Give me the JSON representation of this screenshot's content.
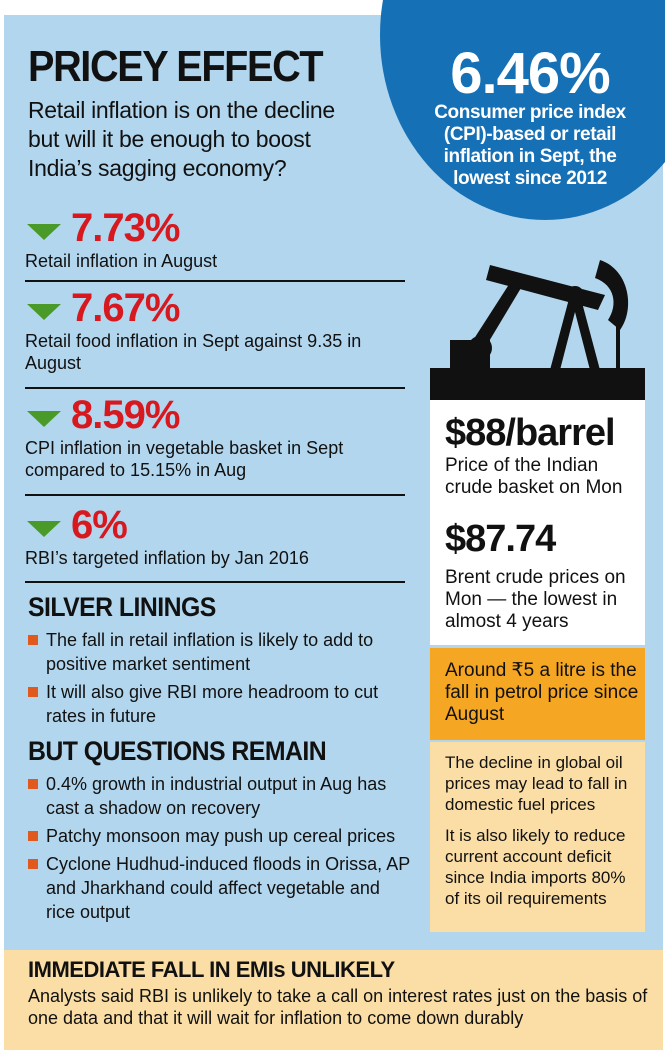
{
  "header": {
    "title": "PRICEY EFFECT",
    "subtitle": "Retail inflation is on the decline but will it be enough to boost India’s sagging economy?"
  },
  "highlight": {
    "value": "6.46%",
    "description": "Consumer price index (CPI)-based or retail inflation in Sept, the lowest since 2012"
  },
  "stats": [
    {
      "value": "7.73%",
      "description": "Retail inflation in August"
    },
    {
      "value": "7.67%",
      "description": "Retail food inflation in Sept against 9.35 in August"
    },
    {
      "value": "8.59%",
      "description": "CPI inflation in vegetable basket in Sept compared to 15.15% in Aug"
    },
    {
      "value": "6%",
      "description": "RBI’s targeted inflation by Jan 2016"
    }
  ],
  "silver_linings": {
    "heading": "SILVER LININGS",
    "items": [
      "The fall in retail inflation is likely to add to positive market sentiment",
      "It will also give RBI  more headroom to cut rates in future"
    ]
  },
  "questions": {
    "heading": "BUT QUESTIONS REMAIN",
    "items": [
      "0.4% growth in industrial output in Aug has cast a shadow on recovery",
      "Patchy monsoon may push up cereal prices",
      "Cyclone Hudhud-induced floods in Orissa, AP and Jharkhand could affect vegetable and rice output"
    ]
  },
  "oil": {
    "price1_value": "$88/barrel",
    "price1_desc": "Price of the Indian crude basket on Mon",
    "price2_value": "$87.74",
    "price2_desc": "Brent crude prices on Mon — the lowest in almost 4 years",
    "petrol_note": "Around ₹5 a litre is the fall in petrol price since August",
    "note1": "The decline in global oil prices may lead to fall in domestic fuel prices",
    "note2": "It is also likely to reduce current account deficit since India imports 80% of its oil requirements"
  },
  "footer": {
    "heading": "IMMEDIATE FALL IN EMIs UNLIKELY",
    "text": "Analysts said RBI is unlikely to take a call on interest rates just on the basis of one data and that it will wait for inflation to come down durably"
  },
  "colors": {
    "panel": "#b2d6ee",
    "circle": "#1670b5",
    "stat_red": "#d7191f",
    "arrow_green": "#4a9a2a",
    "bullet_orange": "#e05a1f",
    "orange_box": "#f5a623",
    "cream_box": "#fbdea6"
  }
}
